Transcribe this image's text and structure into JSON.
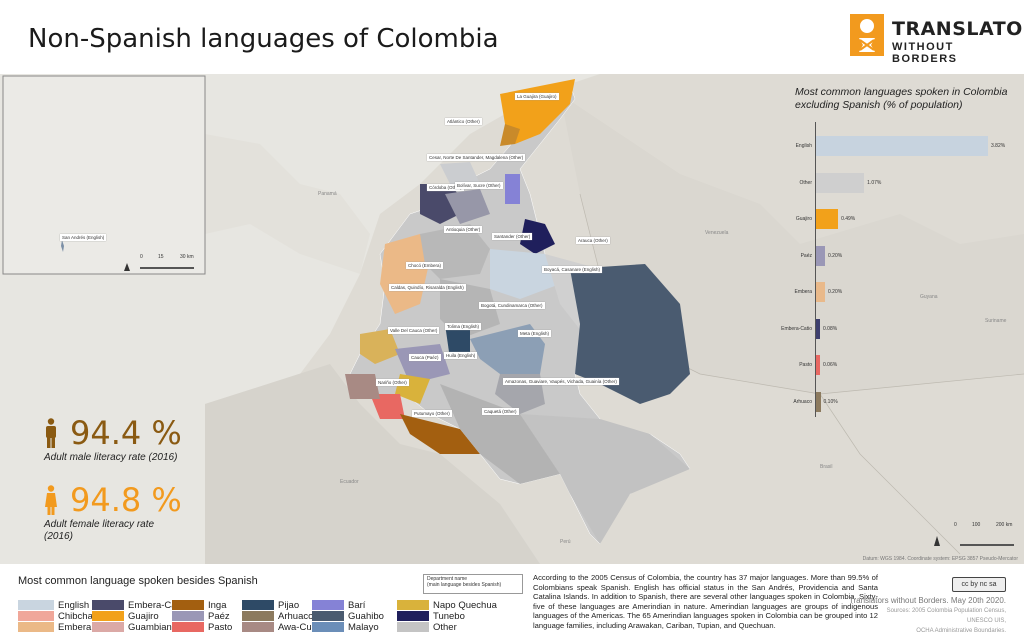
{
  "header": {
    "title": "Non-Spanish languages of Colombia",
    "logo_line1": "TRANSLATORS",
    "logo_line2": "WITHOUT BORDERS",
    "brand_color": "#f29a1e"
  },
  "chart_data": {
    "type": "bar",
    "title": "Most common languages spoken in Colombia excluding Spanish (% of population)",
    "categories": [
      "English",
      "Other",
      "Guajiro",
      "Paéz",
      "Embera",
      "Embera-Catio",
      "Pasto",
      "Arhuaco"
    ],
    "values": [
      3.82,
      1.07,
      0.49,
      0.2,
      0.2,
      0.08,
      0.06,
      0.1
    ],
    "value_labels": [
      "3.82%",
      "1.07%",
      "0.49%",
      "0.20%",
      "0.20%",
      "0.08%",
      "0.06%",
      "0.10%"
    ],
    "colors": [
      "#c7d3df",
      "#cfcfcf",
      "#f2a11a",
      "#9a97b6",
      "#e9b98a",
      "#3e3f6e",
      "#e86862",
      "#8c7a5e"
    ],
    "xlabel": "",
    "ylabel": ""
  },
  "stats": {
    "male_value": "94.4 %",
    "male_label": "Adult male literacy rate (2016)",
    "female_value": "94.8 %",
    "female_label": "Adult female literacy rate (2016)",
    "male_color": "#8a5a12",
    "female_color": "#f29a1e"
  },
  "map": {
    "inset_label": "San Andrés (English)",
    "inset_scale": [
      "0",
      "15",
      "30 km"
    ],
    "main_scale": [
      "0",
      "100",
      "200 km"
    ],
    "countries": [
      "Venezuela",
      "Panamá",
      "Ecuador",
      "Perú",
      "Brasil",
      "Guyana",
      "Suriname"
    ],
    "labels": [
      {
        "text": "La Guajira (Guajiro)"
      },
      {
        "text": "Atlántico (Other)"
      },
      {
        "text": "Cesar, Norte De Santander, Magdalena (Other)"
      },
      {
        "text": "Córdoba (Other)"
      },
      {
        "text": "Bolívar, Sucre (Other)"
      },
      {
        "text": "Antioquia (Other)"
      },
      {
        "text": "Santander (Other)"
      },
      {
        "text": "Arauca (Other)"
      },
      {
        "text": "Chocó (Embera)"
      },
      {
        "text": "Boyacá, Casanare (English)"
      },
      {
        "text": "Caldas, Quindío, Risaralda (English)"
      },
      {
        "text": "Bogotá, Cundinamarca (Other)"
      },
      {
        "text": "Valle Del Cauca (Other)"
      },
      {
        "text": "Tolima (English)"
      },
      {
        "text": "Meta (English)"
      },
      {
        "text": "Cauca (Paéz)"
      },
      {
        "text": "Huila (English)"
      },
      {
        "text": "Nariño (Other)"
      },
      {
        "text": "Amazonas, Guaviare, Vaupés, Vichada, Guainía (Other)"
      },
      {
        "text": "Putumayo (Other)"
      },
      {
        "text": "Caquetá (Other)"
      }
    ],
    "datum": "Datum: WGS 1984. Coordinate system: EPSG 3857 Pseudo-Mercator"
  },
  "legend": {
    "title": "Most common language spoken besides Spanish",
    "items": [
      {
        "label": "English",
        "color": "#c9d5e0"
      },
      {
        "label": "Chibcha",
        "color": "#f0a79a"
      },
      {
        "label": "Embera",
        "color": "#ebb987"
      },
      {
        "label": "Embera-Catio",
        "color": "#4a4a6a"
      },
      {
        "label": "Guajiro",
        "color": "#f2a11a"
      },
      {
        "label": "Guambiano",
        "color": "#dba9a6"
      },
      {
        "label": "Inga",
        "color": "#a35f10"
      },
      {
        "label": "Paéz",
        "color": "#9a97b6"
      },
      {
        "label": "Pasto",
        "color": "#e86862"
      },
      {
        "label": "Pijao",
        "color": "#2e4a66"
      },
      {
        "label": "Arhuaco",
        "color": "#8c7a5e"
      },
      {
        "label": "Awa-Cuaiquer",
        "color": "#a88a84"
      },
      {
        "label": "Barí",
        "color": "#8582d6"
      },
      {
        "label": "Guahibo",
        "color": "#4a5b70"
      },
      {
        "label": "Malayo",
        "color": "#6b8eb8"
      },
      {
        "label": "Napo Quechua",
        "color": "#d9b23b"
      },
      {
        "label": "Tunebo",
        "color": "#1f1f5c"
      },
      {
        "label": "Other",
        "color": "#c4c4c4"
      }
    ],
    "key_line1": "Department name",
    "key_line2": "(main language besides Spanish)"
  },
  "footer": {
    "census_text": "According to the 2005 Census of Colombia, the country has 37 major languages. More than 99.5% of Colombians speak Spanish. English has official status in the San Andrés, Providencia and Santa Catalina Islands. In addition to Spanish, there are several other languages spoken in Colombia. Sixty-five of these languages are Amerindian in nature. Amerindian languages are groups of indigenous languages of the Americas. The 65 Amerindian languages spoken in Colombia can be grouped into 12 language families, including Arawakan, Cariban, Tupian, and Quechuan.",
    "license": "cc by nc sa",
    "credit": "Translators without Borders. May 20th 2020.",
    "sources_line1": "Sources: 2005 Colombia Population Census,",
    "sources_line2": "UNESCO UIS,",
    "sources_line3": "OCHA Administrative Boundaries."
  }
}
